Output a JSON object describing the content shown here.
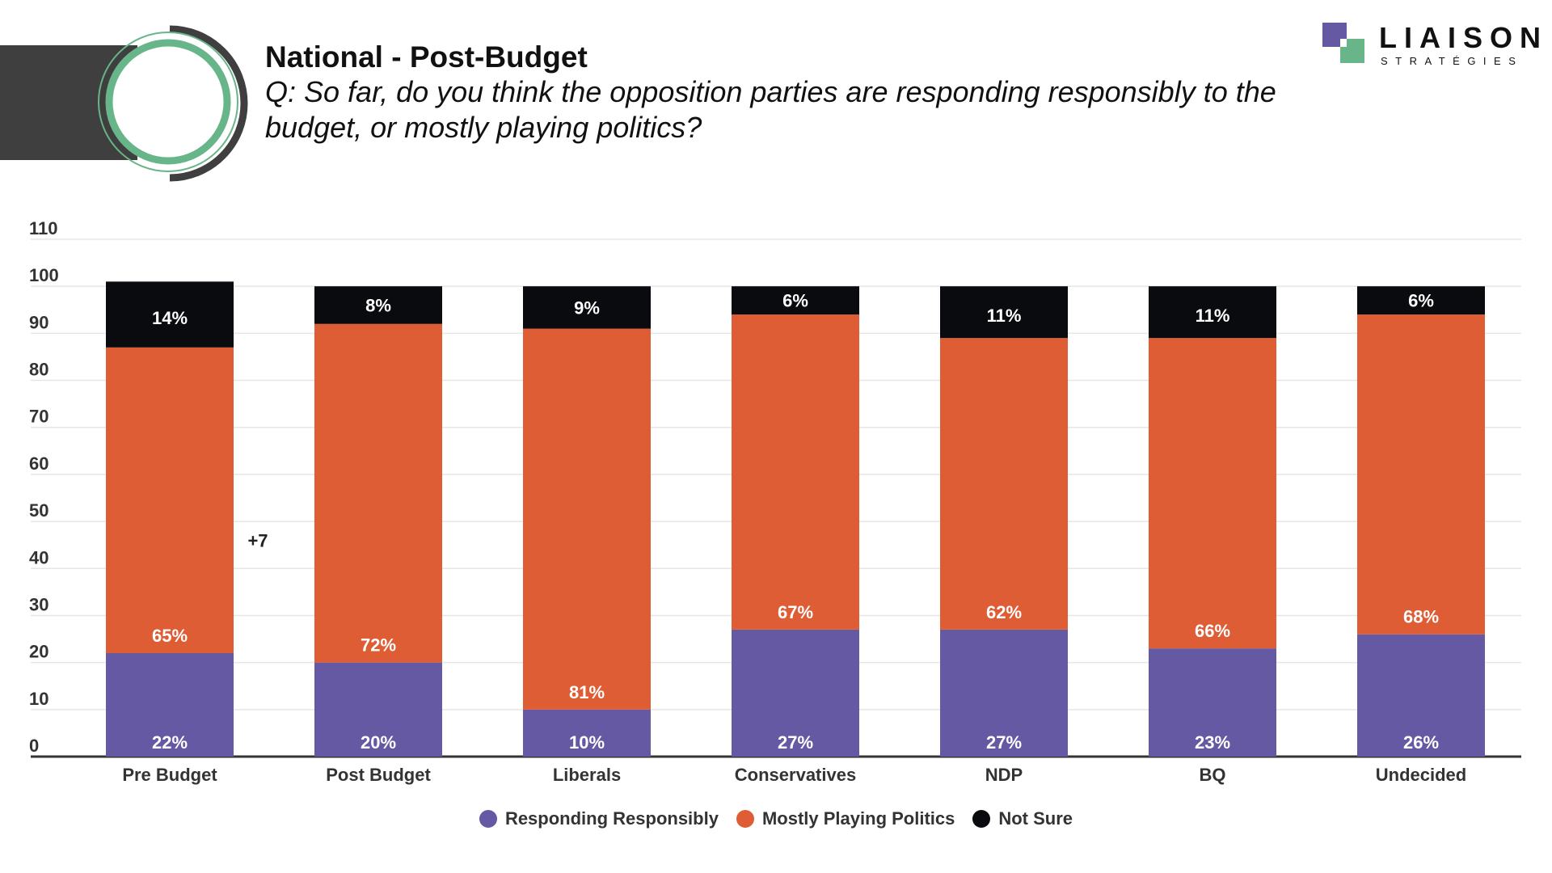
{
  "header": {
    "title": "National - Post-Budget",
    "question": "Q: So far, do you think the opposition parties are responding responsibly to the budget, or mostly playing politics?"
  },
  "logo": {
    "name": "LIAISON",
    "subtitle": "STRATÉGIES"
  },
  "colors": {
    "responding": "#6559a3",
    "politics": "#de5d34",
    "not_sure": "#0a0b0e",
    "ring_green": "#67b589",
    "ring_dark": "#3f3f3f"
  },
  "chart_data": {
    "type": "bar",
    "stacked": true,
    "categories": [
      "Pre Budget",
      "Post Budget",
      "Liberals",
      "Conservatives",
      "NDP",
      "BQ",
      "Undecided"
    ],
    "series": [
      {
        "name": "Responding Responsibly",
        "values": [
          22,
          20,
          10,
          27,
          27,
          23,
          26
        ],
        "labels": [
          "22%",
          "20%",
          "10%",
          "27%",
          "27%",
          "23%",
          "26%"
        ]
      },
      {
        "name": "Mostly Playing Politics",
        "values": [
          65,
          72,
          81,
          67,
          62,
          66,
          68
        ],
        "labels": [
          "65%",
          "72%",
          "81%",
          "67%",
          "62%",
          "66%",
          "68%"
        ]
      },
      {
        "name": "Not Sure",
        "values": [
          14,
          8,
          9,
          6,
          11,
          11,
          6
        ],
        "labels": [
          "14%",
          "8%",
          "9%",
          "6%",
          "11%",
          "11%",
          "6%"
        ]
      }
    ],
    "ylim": [
      0,
      110
    ],
    "yticks": [
      0,
      10,
      20,
      30,
      40,
      50,
      60,
      70,
      80,
      90,
      100,
      110
    ],
    "annotations": [
      {
        "text": "+7",
        "x_after_category": "Pre Budget",
        "y": 46
      }
    ],
    "legend_position": "bottom"
  },
  "legend": [
    {
      "label": "Responding Responsibly",
      "color": "#6559a3"
    },
    {
      "label": "Mostly Playing Politics",
      "color": "#de5d34"
    },
    {
      "label": "Not Sure",
      "color": "#0a0b0e"
    }
  ]
}
